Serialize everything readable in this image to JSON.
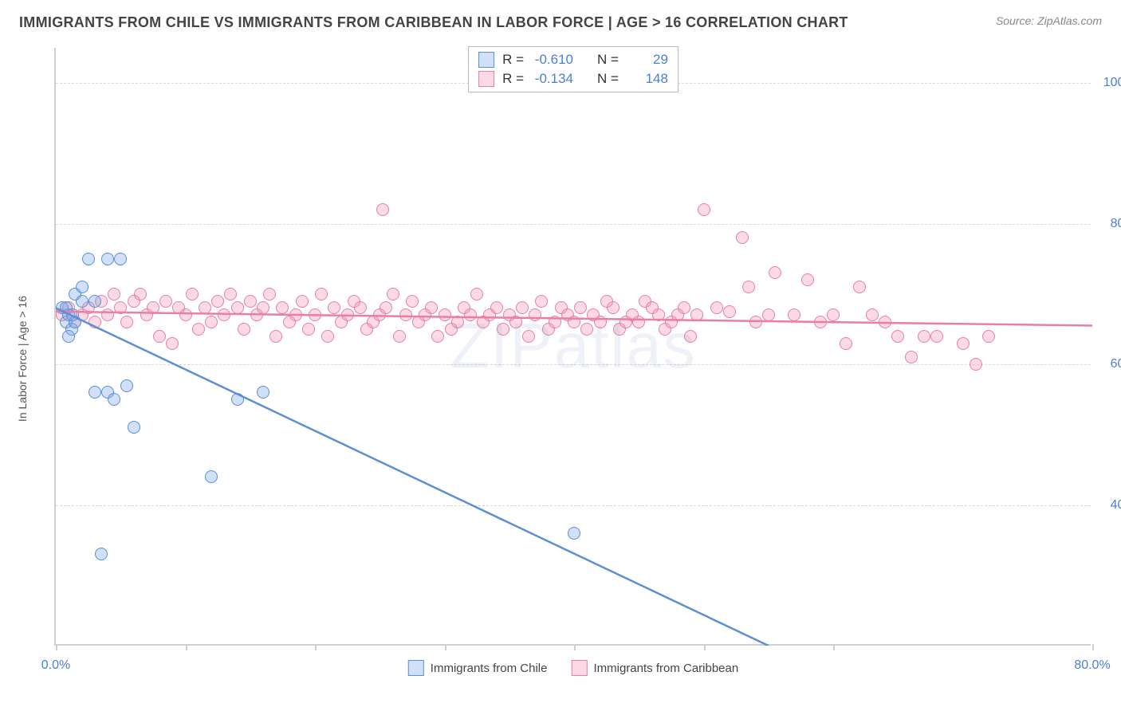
{
  "header": {
    "title": "IMMIGRANTS FROM CHILE VS IMMIGRANTS FROM CARIBBEAN IN LABOR FORCE | AGE > 16 CORRELATION CHART",
    "source": "Source: ZipAtlas.com"
  },
  "watermark": "ZIPatlas",
  "chart": {
    "type": "scatter",
    "background_color": "#ffffff",
    "grid_color": "#d8d8d8",
    "axis_color": "#cfcfcf",
    "y_axis_title": "In Labor Force | Age > 16",
    "xlim": [
      0,
      80
    ],
    "ylim": [
      20,
      105
    ],
    "x_ticks": [
      0,
      10,
      20,
      30,
      40,
      50,
      60,
      80
    ],
    "x_tick_labels": {
      "0": "0.0%",
      "80": "80.0%"
    },
    "y_grid": [
      40,
      60,
      80,
      100
    ],
    "y_tick_labels": {
      "40": "40.0%",
      "60": "60.0%",
      "80": "80.0%",
      "100": "100.0%"
    },
    "marker_radius": 8,
    "marker_border_width": 1.5,
    "marker_fill_opacity": 0.35,
    "axis_label_color": "#4a7fd6",
    "axis_label_fontsize": 16,
    "title_color": "#444444",
    "title_fontsize": 18,
    "line_width": 2.5
  },
  "series": {
    "chile": {
      "label": "Immigrants from Chile",
      "color_fill": "rgba(120,165,230,0.35)",
      "color_border": "#5b8fd6",
      "R": "-0.610",
      "N": "29",
      "regression": {
        "x1": 0,
        "y1": 68,
        "x2": 55,
        "y2": 20
      },
      "points": [
        [
          0.5,
          68
        ],
        [
          0.8,
          66
        ],
        [
          1.0,
          67
        ],
        [
          1.2,
          65
        ],
        [
          1.5,
          66
        ],
        [
          1.0,
          64
        ],
        [
          1.5,
          70
        ],
        [
          2.0,
          69
        ],
        [
          0.8,
          68
        ],
        [
          1.3,
          67
        ],
        [
          2.5,
          75
        ],
        [
          4.0,
          75
        ],
        [
          5.0,
          75
        ],
        [
          2.0,
          71
        ],
        [
          3.0,
          69
        ],
        [
          4.0,
          56
        ],
        [
          4.5,
          55
        ],
        [
          5.5,
          57
        ],
        [
          3.0,
          56
        ],
        [
          6.0,
          51
        ],
        [
          3.5,
          33
        ],
        [
          12.0,
          44
        ],
        [
          14.0,
          55
        ],
        [
          16.0,
          56
        ],
        [
          40.0,
          36
        ]
      ]
    },
    "caribbean": {
      "label": "Immigrants from Caribbean",
      "color_fill": "rgba(244,150,180,0.35)",
      "color_border": "#e97fa5",
      "R": "-0.134",
      "N": "148",
      "regression": {
        "x1": 0,
        "y1": 67.5,
        "x2": 80,
        "y2": 65.5
      },
      "points": [
        [
          0.5,
          67
        ],
        [
          1,
          68
        ],
        [
          1.5,
          66
        ],
        [
          2,
          67
        ],
        [
          2.5,
          68
        ],
        [
          3,
          66
        ],
        [
          3.5,
          69
        ],
        [
          4,
          67
        ],
        [
          4.5,
          70
        ],
        [
          5,
          68
        ],
        [
          5.5,
          66
        ],
        [
          6,
          69
        ],
        [
          6.5,
          70
        ],
        [
          7,
          67
        ],
        [
          7.5,
          68
        ],
        [
          8,
          64
        ],
        [
          8.5,
          69
        ],
        [
          9,
          63
        ],
        [
          9.5,
          68
        ],
        [
          10,
          67
        ],
        [
          10.5,
          70
        ],
        [
          11,
          65
        ],
        [
          11.5,
          68
        ],
        [
          12,
          66
        ],
        [
          12.5,
          69
        ],
        [
          13,
          67
        ],
        [
          13.5,
          70
        ],
        [
          14,
          68
        ],
        [
          14.5,
          65
        ],
        [
          15,
          69
        ],
        [
          15.5,
          67
        ],
        [
          16,
          68
        ],
        [
          16.5,
          70
        ],
        [
          17,
          64
        ],
        [
          17.5,
          68
        ],
        [
          18,
          66
        ],
        [
          18.5,
          67
        ],
        [
          19,
          69
        ],
        [
          19.5,
          65
        ],
        [
          20,
          67
        ],
        [
          20.5,
          70
        ],
        [
          21,
          64
        ],
        [
          21.5,
          68
        ],
        [
          22,
          66
        ],
        [
          22.5,
          67
        ],
        [
          23,
          69
        ],
        [
          23.5,
          68
        ],
        [
          24,
          65
        ],
        [
          24.5,
          66
        ],
        [
          25,
          67
        ],
        [
          25.2,
          82
        ],
        [
          25.5,
          68
        ],
        [
          26,
          70
        ],
        [
          26.5,
          64
        ],
        [
          27,
          67
        ],
        [
          27.5,
          69
        ],
        [
          28,
          66
        ],
        [
          28.5,
          67
        ],
        [
          29,
          68
        ],
        [
          29.5,
          64
        ],
        [
          30,
          67
        ],
        [
          30.5,
          65
        ],
        [
          31,
          66
        ],
        [
          31.5,
          68
        ],
        [
          32,
          67
        ],
        [
          32.5,
          70
        ],
        [
          33,
          66
        ],
        [
          33.5,
          67
        ],
        [
          34,
          68
        ],
        [
          34.5,
          65
        ],
        [
          35,
          67
        ],
        [
          35.5,
          66
        ],
        [
          36,
          68
        ],
        [
          36.5,
          64
        ],
        [
          37,
          67
        ],
        [
          37.5,
          69
        ],
        [
          38,
          65
        ],
        [
          38.5,
          66
        ],
        [
          39,
          68
        ],
        [
          39.5,
          67
        ],
        [
          40,
          66
        ],
        [
          40.5,
          68
        ],
        [
          41,
          65
        ],
        [
          41.5,
          67
        ],
        [
          42,
          66
        ],
        [
          42.5,
          69
        ],
        [
          43,
          68
        ],
        [
          43.5,
          65
        ],
        [
          44,
          66
        ],
        [
          44.5,
          67
        ],
        [
          45,
          66
        ],
        [
          45.5,
          69
        ],
        [
          46,
          68
        ],
        [
          46.5,
          67
        ],
        [
          47,
          65
        ],
        [
          47.5,
          66
        ],
        [
          48,
          67
        ],
        [
          48.5,
          68
        ],
        [
          49,
          64
        ],
        [
          49.5,
          67
        ],
        [
          50,
          82
        ],
        [
          51,
          68
        ],
        [
          52,
          67.5
        ],
        [
          53,
          78
        ],
        [
          53.5,
          71
        ],
        [
          54,
          66
        ],
        [
          55,
          67
        ],
        [
          55.5,
          73
        ],
        [
          57,
          67
        ],
        [
          58,
          72
        ],
        [
          59,
          66
        ],
        [
          60,
          67
        ],
        [
          61,
          63
        ],
        [
          62,
          71
        ],
        [
          63,
          67
        ],
        [
          64,
          66
        ],
        [
          65,
          64
        ],
        [
          66,
          61
        ],
        [
          67,
          64
        ],
        [
          68,
          64
        ],
        [
          70,
          63
        ],
        [
          71,
          60
        ],
        [
          72,
          64
        ]
      ]
    }
  },
  "top_legend": {
    "rows": [
      {
        "swatch": "chile",
        "R_label": "R =",
        "R_value": "-0.610",
        "N_label": "N =",
        "N_value": "29"
      },
      {
        "swatch": "caribbean",
        "R_label": "R =",
        "R_value": "-0.134",
        "N_label": "N =",
        "N_value": "148"
      }
    ]
  },
  "bottom_legend": {
    "items": [
      {
        "swatch": "chile",
        "label": "Immigrants from Chile"
      },
      {
        "swatch": "caribbean",
        "label": "Immigrants from Caribbean"
      }
    ]
  }
}
